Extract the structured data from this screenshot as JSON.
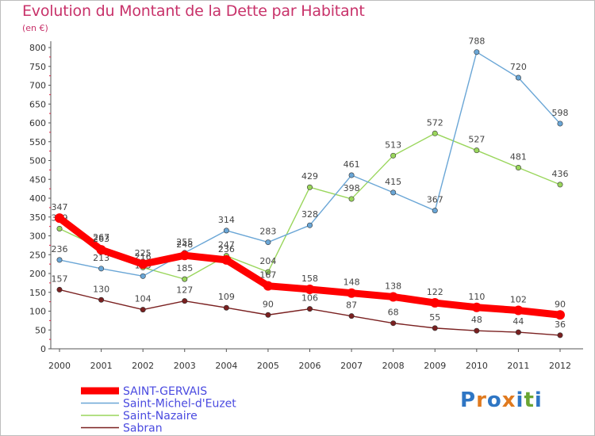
{
  "title": "Evolution du Montant de la Dette par Habitant",
  "subtitle": "(en €)",
  "logo": {
    "text": "Proxiti",
    "colors": [
      "#2f76c4",
      "#e07a1f",
      "#2f76c4",
      "#e07a1f",
      "#2f76c4",
      "#6aa532",
      "#2f76c4"
    ]
  },
  "chart_data": {
    "type": "line",
    "title": "Evolution du Montant de la Dette par Habitant",
    "ylabel": "(en €)",
    "x": [
      2000,
      2001,
      2002,
      2003,
      2004,
      2005,
      2006,
      2007,
      2008,
      2009,
      2010,
      2011,
      2012
    ],
    "ylim": [
      0,
      800
    ],
    "yticks": [
      0,
      50,
      100,
      150,
      200,
      250,
      300,
      350,
      400,
      450,
      500,
      550,
      600,
      650,
      700,
      750,
      800
    ],
    "grid": false,
    "legend": "bottom-left",
    "series": [
      {
        "name": "Sabran",
        "color": "#7a2020",
        "values": [
          157,
          130,
          104,
          127,
          109,
          90,
          106,
          87,
          68,
          55,
          48,
          44,
          36
        ]
      },
      {
        "name": "Saint-Nazaire",
        "color": "#9ad65c",
        "values": [
          319,
          267,
          216,
          185,
          247,
          204,
          429,
          398,
          513,
          572,
          527,
          481,
          436
        ]
      },
      {
        "name": "Saint-Michel-d'Euzet",
        "color": "#6aa6d6",
        "values": [
          236,
          213,
          193,
          255,
          314,
          283,
          328,
          461,
          415,
          367,
          788,
          720,
          598
        ]
      },
      {
        "name": "SAINT-GERVAIS",
        "color": "#ff0000",
        "values": [
          347,
          263,
          225,
          248,
          236,
          167,
          158,
          148,
          138,
          122,
          110,
          102,
          90
        ]
      }
    ]
  }
}
